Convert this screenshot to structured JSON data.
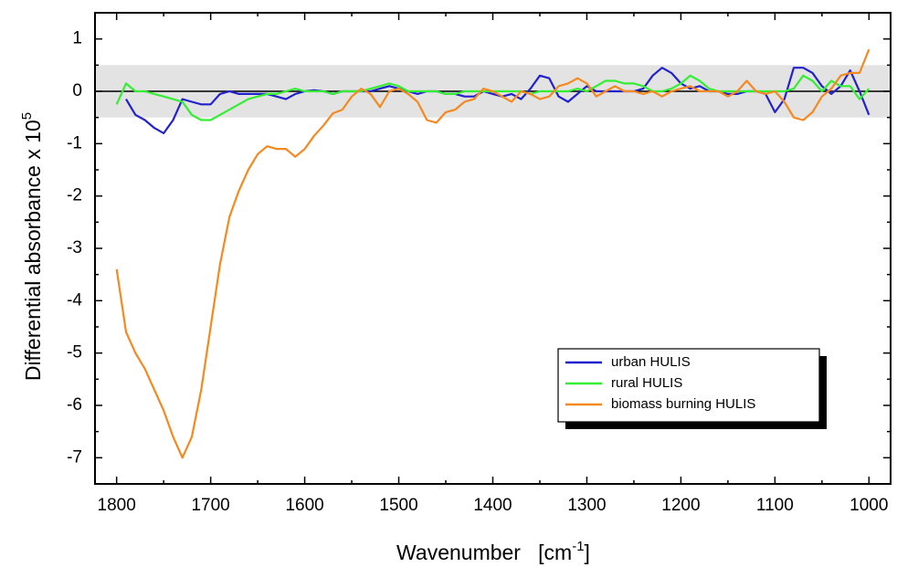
{
  "chart_data": {
    "type": "line",
    "x_label": "Wavenumber   [cm",
    "x_label_exponent": "-1",
    "x_label_suffix": "]",
    "y_label": "Differential absorbance x 10",
    "y_label_exponent": "5",
    "x": [
      1800,
      1790,
      1780,
      1770,
      1760,
      1750,
      1740,
      1730,
      1720,
      1710,
      1700,
      1690,
      1680,
      1670,
      1660,
      1650,
      1640,
      1630,
      1620,
      1610,
      1600,
      1590,
      1580,
      1570,
      1560,
      1550,
      1540,
      1530,
      1520,
      1510,
      1500,
      1490,
      1480,
      1470,
      1460,
      1450,
      1440,
      1430,
      1420,
      1410,
      1400,
      1390,
      1380,
      1370,
      1360,
      1350,
      1340,
      1330,
      1320,
      1310,
      1300,
      1290,
      1280,
      1270,
      1260,
      1250,
      1240,
      1230,
      1220,
      1210,
      1200,
      1190,
      1180,
      1170,
      1160,
      1150,
      1140,
      1130,
      1120,
      1110,
      1100,
      1090,
      1080,
      1070,
      1060,
      1050,
      1040,
      1030,
      1020,
      1010,
      1000
    ],
    "series": [
      {
        "name": "urban HULIS",
        "color": "#2222cc",
        "values": [
          null,
          -0.15,
          -0.45,
          -0.55,
          -0.7,
          -0.8,
          -0.55,
          -0.15,
          -0.2,
          -0.25,
          -0.25,
          -0.05,
          0.0,
          -0.05,
          -0.05,
          -0.05,
          -0.05,
          -0.1,
          -0.15,
          -0.05,
          0.0,
          0.02,
          0.0,
          -0.05,
          0.0,
          0.0,
          0.0,
          0.0,
          0.05,
          0.1,
          0.05,
          0.0,
          -0.05,
          0.0,
          0.0,
          -0.05,
          -0.05,
          -0.1,
          -0.1,
          0.0,
          -0.05,
          -0.1,
          -0.05,
          -0.15,
          0.05,
          0.3,
          0.25,
          -0.1,
          -0.2,
          -0.05,
          0.1,
          0.0,
          0.0,
          0.0,
          0.0,
          0.0,
          0.05,
          0.3,
          0.45,
          0.35,
          0.15,
          0.05,
          0.1,
          0.0,
          0.0,
          -0.05,
          -0.05,
          0.0,
          0.0,
          -0.05,
          -0.4,
          -0.15,
          0.45,
          0.45,
          0.35,
          0.1,
          -0.05,
          0.1,
          0.4,
          0.0,
          -0.45
        ]
      },
      {
        "name": "rural HULIS",
        "color": "#33ee33",
        "values": [
          -0.25,
          0.15,
          0.0,
          0.0,
          -0.05,
          -0.1,
          -0.15,
          -0.2,
          -0.45,
          -0.55,
          -0.55,
          -0.45,
          -0.35,
          -0.25,
          -0.15,
          -0.1,
          -0.05,
          -0.05,
          0.0,
          0.05,
          0.0,
          0.0,
          0.0,
          -0.05,
          0.0,
          0.0,
          0.0,
          0.05,
          0.1,
          0.15,
          0.1,
          0.0,
          0.0,
          0.0,
          0.0,
          -0.05,
          -0.05,
          0.0,
          0.0,
          0.0,
          0.0,
          0.0,
          0.0,
          0.0,
          -0.05,
          0.0,
          0.0,
          0.0,
          0.0,
          0.05,
          0.0,
          0.1,
          0.2,
          0.2,
          0.15,
          0.15,
          0.1,
          0.0,
          0.0,
          0.05,
          0.15,
          0.3,
          0.2,
          0.05,
          0.0,
          0.0,
          0.0,
          0.0,
          0.0,
          0.0,
          0.0,
          0.0,
          0.05,
          0.3,
          0.2,
          0.0,
          0.2,
          0.1,
          0.1,
          -0.15,
          0.05
        ]
      },
      {
        "name": "biomass burning HULIS",
        "color": "#f5891f",
        "values": [
          -3.4,
          -4.6,
          -5.0,
          -5.3,
          -5.7,
          -6.1,
          -6.6,
          -7.0,
          -6.6,
          -5.7,
          -4.5,
          -3.3,
          -2.4,
          -1.9,
          -1.5,
          -1.2,
          -1.05,
          -1.1,
          -1.1,
          -1.25,
          -1.1,
          -0.85,
          -0.65,
          -0.42,
          -0.35,
          -0.1,
          0.05,
          -0.05,
          -0.3,
          0.0,
          0.05,
          -0.05,
          -0.2,
          -0.55,
          -0.6,
          -0.4,
          -0.35,
          -0.2,
          -0.15,
          0.05,
          0.0,
          -0.1,
          -0.2,
          0.0,
          -0.05,
          -0.15,
          -0.1,
          0.1,
          0.15,
          0.25,
          0.15,
          -0.1,
          0.0,
          0.1,
          0.0,
          0.0,
          -0.05,
          0.0,
          -0.1,
          0.0,
          0.05,
          0.1,
          0.0,
          0.0,
          0.0,
          -0.1,
          0.0,
          0.2,
          0.0,
          -0.05,
          0.0,
          -0.2,
          -0.5,
          -0.55,
          -0.4,
          -0.1,
          0.05,
          0.3,
          0.35,
          0.35,
          0.8
        ]
      }
    ],
    "xlim": [
      1823,
      977
    ],
    "ylim": [
      -7.5,
      1.5
    ],
    "xticks": [
      1800,
      1700,
      1600,
      1500,
      1400,
      1300,
      1200,
      1100,
      1000
    ],
    "yticks": [
      1,
      0,
      -1,
      -2,
      -3,
      -4,
      -5,
      -6,
      -7
    ],
    "band": [
      -0.5,
      0.5
    ],
    "band_color": "#e3e3e3",
    "hline": 0,
    "legend": "lower right",
    "grid": false
  }
}
